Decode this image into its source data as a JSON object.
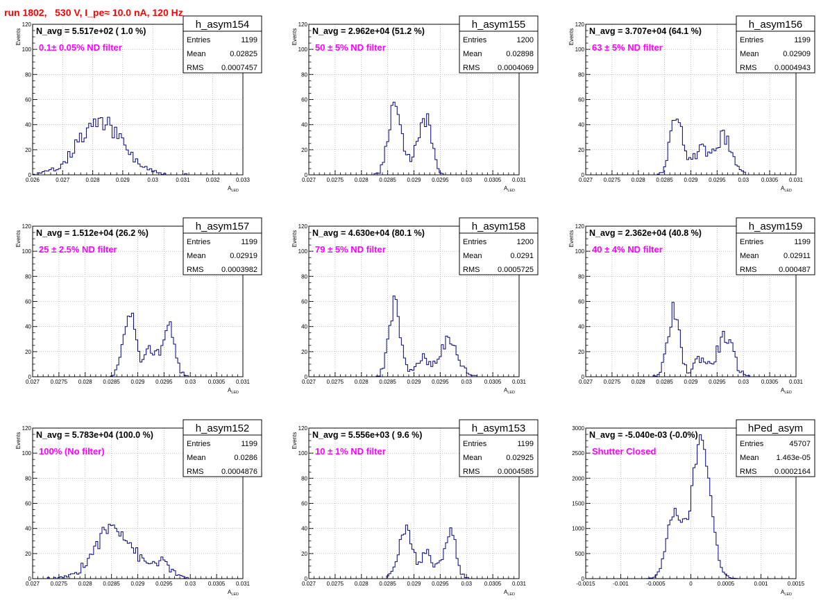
{
  "run_title": "run 1802,   530 V, I_pe≈ 10.0 nA, 120 Hz",
  "colors": {
    "title": "#ff0000",
    "histogram_line": "#00007f",
    "annotation": "#ff00ff",
    "grid": "#000000"
  },
  "chart_data": [
    {
      "type": "bar",
      "name": "h_asym154",
      "navg_text": "N_avg = 5.517e+02 ( 1.0 %)",
      "filter_text": "0.1± 0.05% ND filter",
      "stats": {
        "entries": "1199",
        "mean": "0.02825",
        "rms": "0.0007457"
      },
      "xlabel": "A",
      "xlabel_sub": "LED",
      "ylabel": "Events",
      "xlim": [
        0.026,
        0.033
      ],
      "ylim": [
        0,
        120
      ],
      "x_ticks": [
        "0.026",
        "0.027",
        "0.028",
        "0.029",
        "0.03",
        "0.031",
        "0.032",
        "0.033"
      ],
      "y_ticks": [
        "0",
        "20",
        "40",
        "60",
        "80",
        "100",
        "120"
      ],
      "mean": 0.02825,
      "rms": 0.0007457,
      "peaks": [],
      "n_bins": 90,
      "seed": 154
    },
    {
      "type": "bar",
      "name": "h_asym155",
      "navg_text": "N_avg = 2.962e+04 (51.2 %)",
      "filter_text": "50 ± 5% ND filter",
      "stats": {
        "entries": "1200",
        "mean": "0.02898",
        "rms": "0.0004069"
      },
      "xlabel": "A",
      "xlabel_sub": "LED",
      "ylabel": "Events",
      "xlim": [
        0.027,
        0.031
      ],
      "ylim": [
        0,
        120
      ],
      "x_ticks": [
        "0.027",
        "0.0275",
        "0.028",
        "0.0285",
        "0.029",
        "0.0295",
        "0.03",
        "0.0305",
        "0.031"
      ],
      "y_ticks": [
        "0",
        "20",
        "40",
        "60",
        "80",
        "100",
        "120"
      ],
      "peaks": [
        {
          "center": 0.02863,
          "sigma": 0.00012,
          "height": 57
        },
        {
          "center": 0.02925,
          "sigma": 0.0001,
          "height": 40
        },
        {
          "center": 0.02905,
          "sigma": 0.00012,
          "height": 18
        }
      ],
      "n_bins": 100,
      "seed": 155
    },
    {
      "type": "bar",
      "name": "h_asym156",
      "navg_text": "N_avg = 3.707e+04 (64.1 %)",
      "filter_text": "63 ± 5% ND filter",
      "stats": {
        "entries": "1199",
        "mean": "0.02909",
        "rms": "0.0004943"
      },
      "xlabel": "A",
      "xlabel_sub": "LED",
      "ylabel": "Events",
      "xlim": [
        0.027,
        0.031
      ],
      "ylim": [
        0,
        120
      ],
      "x_ticks": [
        "0.027",
        "0.0275",
        "0.028",
        "0.0285",
        "0.029",
        "0.0295",
        "0.03",
        "0.0305",
        "0.031"
      ],
      "y_ticks": [
        "0",
        "20",
        "40",
        "60",
        "80",
        "100",
        "120"
      ],
      "peaks": [
        {
          "center": 0.02873,
          "sigma": 0.00012,
          "height": 50
        },
        {
          "center": 0.02962,
          "sigma": 0.00016,
          "height": 30
        },
        {
          "center": 0.02918,
          "sigma": 0.00012,
          "height": 20
        }
      ],
      "n_bins": 100,
      "seed": 156
    },
    {
      "type": "bar",
      "name": "h_asym157",
      "navg_text": "N_avg = 1.512e+04 (26.2 %)",
      "filter_text": "25 ± 2.5% ND filter",
      "stats": {
        "entries": "1199",
        "mean": "0.02919",
        "rms": "0.0003982"
      },
      "xlabel": "A",
      "xlabel_sub": "LED",
      "ylabel": "Events",
      "xlim": [
        0.027,
        0.031
      ],
      "ylim": [
        0,
        120
      ],
      "x_ticks": [
        "0.027",
        "0.0275",
        "0.028",
        "0.0285",
        "0.029",
        "0.0295",
        "0.03",
        "0.0305",
        "0.031"
      ],
      "y_ticks": [
        "0",
        "20",
        "40",
        "60",
        "80",
        "100",
        "120"
      ],
      "peaks": [
        {
          "center": 0.02885,
          "sigma": 0.00012,
          "height": 48
        },
        {
          "center": 0.02958,
          "sigma": 0.00012,
          "height": 40
        },
        {
          "center": 0.02925,
          "sigma": 0.0001,
          "height": 22
        }
      ],
      "n_bins": 100,
      "seed": 157
    },
    {
      "type": "bar",
      "name": "h_asym158",
      "navg_text": "N_avg = 4.630e+04 (80.1 %)",
      "filter_text": "79 ± 5% ND filter",
      "stats": {
        "entries": "1200",
        "mean": "0.0291",
        "rms": "0.0005725"
      },
      "xlabel": "A",
      "xlabel_sub": "LED",
      "ylabel": "Events",
      "xlim": [
        0.027,
        0.031
      ],
      "ylim": [
        0,
        120
      ],
      "x_ticks": [
        "0.027",
        "0.0275",
        "0.028",
        "0.0285",
        "0.029",
        "0.0295",
        "0.03",
        "0.0305",
        "0.031"
      ],
      "y_ticks": [
        "0",
        "20",
        "40",
        "60",
        "80",
        "100",
        "120"
      ],
      "peaks": [
        {
          "center": 0.02863,
          "sigma": 0.00011,
          "height": 58
        },
        {
          "center": 0.02965,
          "sigma": 0.00018,
          "height": 28
        },
        {
          "center": 0.02915,
          "sigma": 0.00012,
          "height": 14
        }
      ],
      "n_bins": 100,
      "seed": 158
    },
    {
      "type": "bar",
      "name": "h_asym159",
      "navg_text": "N_avg = 2.362e+04 (40.8 %)",
      "filter_text": "40 ± 4% ND filter",
      "stats": {
        "entries": "1199",
        "mean": "0.02911",
        "rms": "0.000487"
      },
      "xlabel": "A",
      "xlabel_sub": "LED",
      "ylabel": "Events",
      "xlim": [
        0.027,
        0.031
      ],
      "ylim": [
        0,
        120
      ],
      "x_ticks": [
        "0.027",
        "0.0275",
        "0.028",
        "0.0285",
        "0.029",
        "0.0295",
        "0.03",
        "0.0305",
        "0.031"
      ],
      "y_ticks": [
        "0",
        "20",
        "40",
        "60",
        "80",
        "100",
        "120"
      ],
      "peaks": [
        {
          "center": 0.02867,
          "sigma": 0.00011,
          "height": 52
        },
        {
          "center": 0.02965,
          "sigma": 0.00015,
          "height": 32
        },
        {
          "center": 0.02918,
          "sigma": 0.00012,
          "height": 15
        }
      ],
      "n_bins": 100,
      "seed": 159
    },
    {
      "type": "bar",
      "name": "h_asym152",
      "navg_text": "N_avg = 5.783e+04 (100.0 %)",
      "filter_text": "100% (No filter)",
      "stats": {
        "entries": "1199",
        "mean": "0.0286",
        "rms": "0.0004876"
      },
      "xlabel": "A",
      "xlabel_sub": "LED",
      "ylabel": "Events",
      "xlim": [
        0.027,
        0.031
      ],
      "ylim": [
        0,
        120
      ],
      "x_ticks": [
        "0.027",
        "0.0275",
        "0.028",
        "0.0285",
        "0.029",
        "0.0295",
        "0.03",
        "0.0305",
        "0.031"
      ],
      "y_ticks": [
        "0",
        "20",
        "40",
        "60",
        "80",
        "100",
        "120"
      ],
      "peaks": [
        {
          "center": 0.02855,
          "sigma": 0.00035,
          "height": 42
        },
        {
          "center": 0.02945,
          "sigma": 0.00018,
          "height": 12
        }
      ],
      "n_bins": 100,
      "seed": 152
    },
    {
      "type": "bar",
      "name": "h_asym153",
      "navg_text": "N_avg = 5.556e+03 ( 9.6 %)",
      "filter_text": "10 ± 1% ND filter",
      "stats": {
        "entries": "1199",
        "mean": "0.02925",
        "rms": "0.0004585"
      },
      "xlabel": "A",
      "xlabel_sub": "LED",
      "ylabel": "Events",
      "xlim": [
        0.027,
        0.031
      ],
      "ylim": [
        0,
        120
      ],
      "x_ticks": [
        "0.027",
        "0.0275",
        "0.028",
        "0.0285",
        "0.029",
        "0.0295",
        "0.03",
        "0.0305",
        "0.031"
      ],
      "y_ticks": [
        "0",
        "20",
        "40",
        "60",
        "80",
        "100",
        "120"
      ],
      "peaks": [
        {
          "center": 0.02883,
          "sigma": 0.00013,
          "height": 38
        },
        {
          "center": 0.02968,
          "sigma": 0.00011,
          "height": 40
        },
        {
          "center": 0.02925,
          "sigma": 0.00012,
          "height": 22
        }
      ],
      "n_bins": 100,
      "seed": 153
    },
    {
      "type": "bar",
      "name": "hPed_asym",
      "navg_text": "N_avg = -5.040e-03 (-0.0%)",
      "filter_text": "Shutter Closed",
      "stats": {
        "entries": "45707",
        "mean": "1.463e-05",
        "rms": "0.0002164"
      },
      "xlabel": "A",
      "xlabel_sub": "LED",
      "ylabel": "",
      "xlim": [
        -0.0015,
        0.0015
      ],
      "ylim": [
        0,
        3000
      ],
      "x_ticks": [
        "-0.0015",
        "-0.001",
        "-0.0005",
        "0",
        "0.0005",
        "0.001",
        "0.0015"
      ],
      "y_ticks": [
        "0",
        "500",
        "1000",
        "1500",
        "2000",
        "2500",
        "3000"
      ],
      "peaks": [
        {
          "center": 0.00015,
          "sigma": 0.00013,
          "height": 2780
        },
        {
          "center": -0.00023,
          "sigma": 0.00011,
          "height": 1300
        }
      ],
      "n_bins": 100,
      "seed": 100
    }
  ]
}
